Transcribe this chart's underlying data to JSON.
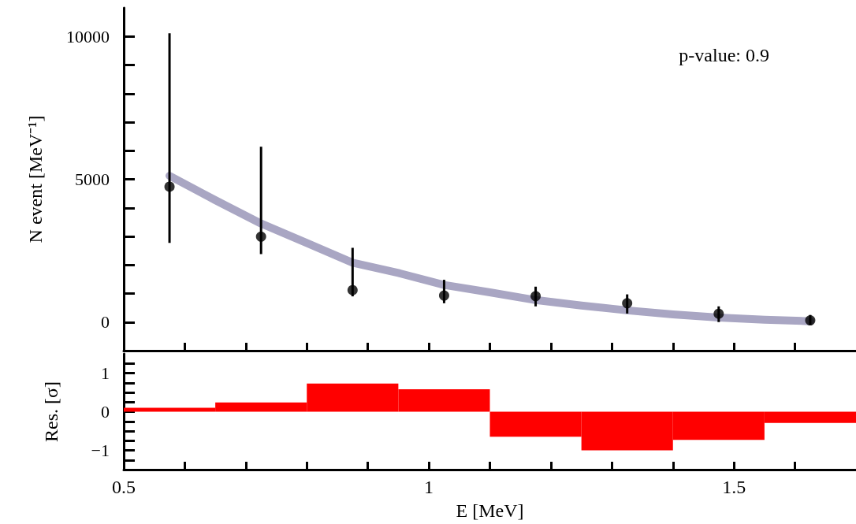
{
  "chart_data": [
    {
      "type": "scatter",
      "ylabel": "N event [MeV⁻¹]",
      "annotations": [
        "p-value: 0.9"
      ],
      "xlim": [
        0.5,
        1.7
      ],
      "xticks": [
        {
          "value": 0.5,
          "label": null
        },
        {
          "value": 0.6,
          "label": null
        },
        {
          "value": 0.7,
          "label": null
        },
        {
          "value": 0.8,
          "label": null
        },
        {
          "value": 0.9,
          "label": null
        },
        {
          "value": 1,
          "label": null
        },
        {
          "value": 1.1,
          "label": null
        },
        {
          "value": 1.2,
          "label": null
        },
        {
          "value": 1.3,
          "label": null
        },
        {
          "value": 1.4,
          "label": null
        },
        {
          "value": 1.5,
          "label": null
        },
        {
          "value": 1.6,
          "label": null
        }
      ],
      "ylim": [
        -1000,
        11000
      ],
      "yticks": [
        0,
        {
          "value": 1000,
          "label": null
        },
        {
          "value": 2000,
          "label": null
        },
        {
          "value": 3000,
          "label": null
        },
        {
          "value": 4000,
          "label": null
        },
        5000,
        {
          "value": 6000,
          "label": null
        },
        {
          "value": 7000,
          "label": null
        },
        {
          "value": 8000,
          "label": null
        },
        {
          "value": 9000,
          "label": null
        },
        10000
      ],
      "tick_labels": "y",
      "series": [
        {
          "marker": "circle",
          "color": "#000000",
          "x": [
            0.575,
            0.725,
            0.875,
            1.025,
            1.175,
            1.325,
            1.475,
            1.625
          ],
          "values": [
            4740,
            2990,
            1120,
            930,
            910,
            660,
            290,
            60
          ],
          "errors": [
            [
              2770,
              10110
            ],
            [
              2380,
              6140
            ],
            [
              900,
              2600
            ],
            [
              660,
              1480
            ],
            [
              550,
              1240
            ],
            [
              300,
              970
            ],
            [
              0,
              550
            ],
            [
              -100,
              250
            ]
          ]
        },
        {
          "type": "line",
          "marker": "none",
          "color": "#a9a6c3",
          "x": [
            0.575,
            0.65,
            0.725,
            0.8,
            0.875,
            0.95,
            1.025,
            1.1,
            1.175,
            1.25,
            1.325,
            1.4,
            1.475,
            1.55,
            1.625
          ],
          "values": [
            5120,
            4270,
            3450,
            2770,
            2080,
            1720,
            1300,
            1040,
            770,
            580,
            410,
            270,
            160,
            80,
            30
          ]
        }
      ]
    },
    {
      "type": "bar",
      "xlabel": "E [MeV]",
      "ylabel": "Res. [σ]",
      "xlim": [
        0.5,
        1.7
      ],
      "xticks": [
        {
          "value": 0.5,
          "label": "0.5"
        },
        {
          "value": 0.6,
          "label": null
        },
        {
          "value": 0.7,
          "label": null
        },
        {
          "value": 0.8,
          "label": null
        },
        {
          "value": 0.9,
          "label": null
        },
        {
          "value": 1,
          "label": "1"
        },
        {
          "value": 1.1,
          "label": null
        },
        {
          "value": 1.2,
          "label": null
        },
        {
          "value": 1.3,
          "label": null
        },
        {
          "value": 1.4,
          "label": null
        },
        {
          "value": 1.5,
          "label": "1.5"
        },
        {
          "value": 1.6,
          "label": null
        }
      ],
      "ylim": [
        -1.5,
        1.5
      ],
      "yticks": [
        {
          "value": -1.25,
          "label": null
        },
        {
          "value": -1,
          "label": "−1"
        },
        {
          "value": -0.75,
          "label": null
        },
        {
          "value": -0.5,
          "label": null
        },
        {
          "value": -0.25,
          "label": null
        },
        0,
        {
          "value": 0.25,
          "label": null
        },
        {
          "value": 0.5,
          "label": null
        },
        {
          "value": 0.75,
          "label": null
        },
        1,
        {
          "value": 1.25,
          "label": null
        }
      ],
      "x": [
        0.575,
        0.725,
        0.875,
        1.025,
        1.175,
        1.325,
        1.475,
        1.625
      ],
      "values": [
        0.1,
        0.24,
        0.73,
        0.58,
        -0.65,
        -1.0,
        -0.73,
        -0.29
      ],
      "color": "#ff0000"
    }
  ]
}
